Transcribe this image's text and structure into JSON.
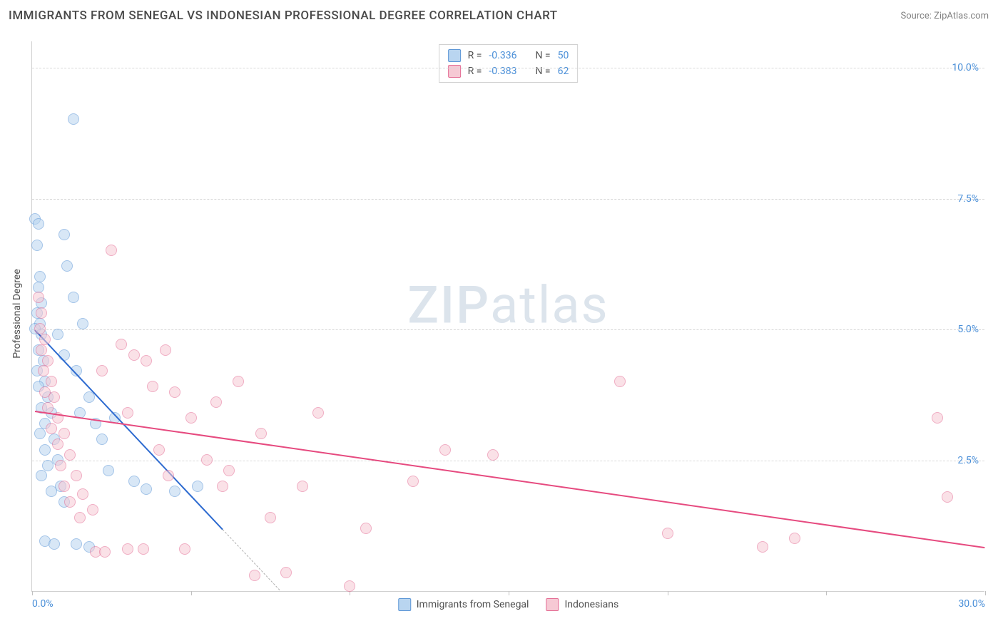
{
  "title": "IMMIGRANTS FROM SENEGAL VS INDONESIAN PROFESSIONAL DEGREE CORRELATION CHART",
  "source": "Source: ZipAtlas.com",
  "ylabel": "Professional Degree",
  "watermark": {
    "part1": "ZIP",
    "part2": "atlas"
  },
  "chart": {
    "type": "scatter",
    "xlim": [
      0,
      30
    ],
    "ylim": [
      0,
      10.5
    ],
    "xticks": [
      0,
      5,
      10,
      15,
      20,
      25,
      30
    ],
    "xtick_labels_shown": {
      "0": "0.0%",
      "30": "30.0%"
    },
    "yticks": [
      2.5,
      5.0,
      7.5,
      10.0
    ],
    "ytick_labels": [
      "2.5%",
      "5.0%",
      "7.5%",
      "10.0%"
    ],
    "grid_color": "#d8d8d8",
    "axis_color": "#d0d0d0",
    "tick_label_color": "#4a8fd8",
    "background_color": "#ffffff",
    "marker_radius": 8,
    "marker_border_width": 1.2,
    "series": [
      {
        "name": "Immigrants from Senegal",
        "fill": "#b9d5f0",
        "fill_opacity": 0.55,
        "border": "#5a95d6",
        "R": -0.336,
        "N": 50,
        "trend": {
          "x1": 0.1,
          "y1": 5.0,
          "x2": 6.0,
          "y2": 1.2,
          "color": "#2e6bd0",
          "width": 2,
          "extrapolate_to_x": 7.8
        },
        "points": [
          [
            0.1,
            7.1
          ],
          [
            0.2,
            7.0
          ],
          [
            0.15,
            6.6
          ],
          [
            0.25,
            6.0
          ],
          [
            0.2,
            5.8
          ],
          [
            0.3,
            5.5
          ],
          [
            0.15,
            5.3
          ],
          [
            0.25,
            5.1
          ],
          [
            0.1,
            5.0
          ],
          [
            0.3,
            4.9
          ],
          [
            0.2,
            4.6
          ],
          [
            0.35,
            4.4
          ],
          [
            0.15,
            4.2
          ],
          [
            0.4,
            4.0
          ],
          [
            0.2,
            3.9
          ],
          [
            0.5,
            3.7
          ],
          [
            0.3,
            3.5
          ],
          [
            0.6,
            3.4
          ],
          [
            0.4,
            3.2
          ],
          [
            0.25,
            3.0
          ],
          [
            0.7,
            2.9
          ],
          [
            0.4,
            2.7
          ],
          [
            0.8,
            2.5
          ],
          [
            0.5,
            2.4
          ],
          [
            0.3,
            2.2
          ],
          [
            0.9,
            2.0
          ],
          [
            0.6,
            1.9
          ],
          [
            1.0,
            1.7
          ],
          [
            0.4,
            0.95
          ],
          [
            0.7,
            0.9
          ],
          [
            1.4,
            0.9
          ],
          [
            1.8,
            0.85
          ],
          [
            1.0,
            6.8
          ],
          [
            1.1,
            6.2
          ],
          [
            1.3,
            5.6
          ],
          [
            1.0,
            4.5
          ],
          [
            1.4,
            4.2
          ],
          [
            1.8,
            3.7
          ],
          [
            1.5,
            3.4
          ],
          [
            2.0,
            3.2
          ],
          [
            2.2,
            2.9
          ],
          [
            2.6,
            3.3
          ],
          [
            2.4,
            2.3
          ],
          [
            3.2,
            2.1
          ],
          [
            3.6,
            1.95
          ],
          [
            4.5,
            1.9
          ],
          [
            5.2,
            2.0
          ],
          [
            1.3,
            9.0
          ],
          [
            1.6,
            5.1
          ],
          [
            0.8,
            4.9
          ]
        ]
      },
      {
        "name": "Indonesians",
        "fill": "#f6c9d4",
        "fill_opacity": 0.55,
        "border": "#e46b93",
        "R": -0.383,
        "N": 62,
        "trend": {
          "x1": 0.1,
          "y1": 3.45,
          "x2": 30.0,
          "y2": 0.85,
          "color": "#e64a7f",
          "width": 2
        },
        "points": [
          [
            0.2,
            5.6
          ],
          [
            0.3,
            5.3
          ],
          [
            0.25,
            5.0
          ],
          [
            0.4,
            4.8
          ],
          [
            0.3,
            4.6
          ],
          [
            0.5,
            4.4
          ],
          [
            0.35,
            4.2
          ],
          [
            0.6,
            4.0
          ],
          [
            0.4,
            3.8
          ],
          [
            0.7,
            3.7
          ],
          [
            0.5,
            3.5
          ],
          [
            0.8,
            3.3
          ],
          [
            0.6,
            3.1
          ],
          [
            1.0,
            3.0
          ],
          [
            0.8,
            2.8
          ],
          [
            1.2,
            2.6
          ],
          [
            0.9,
            2.4
          ],
          [
            1.4,
            2.2
          ],
          [
            1.0,
            2.0
          ],
          [
            1.6,
            1.85
          ],
          [
            1.2,
            1.7
          ],
          [
            1.9,
            1.55
          ],
          [
            1.5,
            1.4
          ],
          [
            2.5,
            6.5
          ],
          [
            2.8,
            4.7
          ],
          [
            3.2,
            4.5
          ],
          [
            3.6,
            4.4
          ],
          [
            2.2,
            4.2
          ],
          [
            4.2,
            4.6
          ],
          [
            3.8,
            3.9
          ],
          [
            4.5,
            3.8
          ],
          [
            3.0,
            3.4
          ],
          [
            5.0,
            3.3
          ],
          [
            4.0,
            2.7
          ],
          [
            5.5,
            2.5
          ],
          [
            4.3,
            2.2
          ],
          [
            6.0,
            2.0
          ],
          [
            3.5,
            0.8
          ],
          [
            3.0,
            0.8
          ],
          [
            4.8,
            0.8
          ],
          [
            6.5,
            4.0
          ],
          [
            7.2,
            3.0
          ],
          [
            7.0,
            0.3
          ],
          [
            8.0,
            0.35
          ],
          [
            7.5,
            1.4
          ],
          [
            8.5,
            2.0
          ],
          [
            9.0,
            3.4
          ],
          [
            10.5,
            1.2
          ],
          [
            10.0,
            0.1
          ],
          [
            12.0,
            2.1
          ],
          [
            13.0,
            2.7
          ],
          [
            14.5,
            2.6
          ],
          [
            18.5,
            4.0
          ],
          [
            20.0,
            1.1
          ],
          [
            23.0,
            0.85
          ],
          [
            24.0,
            1.0
          ],
          [
            28.5,
            3.3
          ],
          [
            28.8,
            1.8
          ],
          [
            2.0,
            0.75
          ],
          [
            2.3,
            0.75
          ],
          [
            5.8,
            3.6
          ],
          [
            6.2,
            2.3
          ]
        ]
      }
    ]
  },
  "legend_top": {
    "rows": [
      {
        "swatch_fill": "#b9d5f0",
        "swatch_border": "#5a95d6",
        "r_label": "R =",
        "r_val": "-0.336",
        "n_label": "N =",
        "n_val": "50"
      },
      {
        "swatch_fill": "#f6c9d4",
        "swatch_border": "#e46b93",
        "r_label": "R =",
        "r_val": "-0.383",
        "n_label": "N =",
        "n_val": "62"
      }
    ]
  },
  "legend_bottom": [
    {
      "swatch_fill": "#b9d5f0",
      "swatch_border": "#5a95d6",
      "label": "Immigrants from Senegal"
    },
    {
      "swatch_fill": "#f6c9d4",
      "swatch_border": "#e46b93",
      "label": "Indonesians"
    }
  ]
}
